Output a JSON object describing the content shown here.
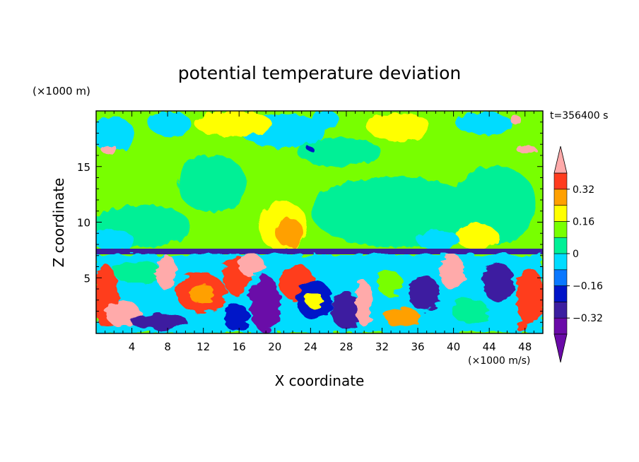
{
  "chart_data": {
    "type": "heatmap",
    "title": "potential temperature deviation",
    "xlabel": "X coordinate",
    "ylabel": "Z coordinate",
    "x_unit": "(×1000 m/s)",
    "y_unit": "(×1000 m)",
    "time_label": "t=356400 s",
    "xlim": [
      0,
      50
    ],
    "ylim": [
      0,
      20
    ],
    "x_ticks": [
      4,
      8,
      12,
      16,
      20,
      24,
      28,
      32,
      36,
      40,
      44,
      48
    ],
    "y_ticks": [
      5,
      10,
      15
    ],
    "x_minor_step": 1,
    "y_minor_step": 1,
    "colorbar": {
      "levels": [
        -0.4,
        -0.32,
        -0.24,
        -0.16,
        -0.08,
        0,
        0.08,
        0.16,
        0.24,
        0.32,
        0.4
      ],
      "labels": [
        "0.32",
        "0.16",
        "0",
        "−0.16",
        "−0.32"
      ],
      "label_values": [
        0.32,
        0.16,
        0,
        -0.16,
        -0.32
      ],
      "colors_low_to_high": [
        "#6a0aa8",
        "#3c1ea0",
        "#0014c8",
        "#0a78ff",
        "#00dcff",
        "#00f096",
        "#78ff00",
        "#ffff00",
        "#ffa000",
        "#ff3c1e",
        "#ffaaaa"
      ]
    }
  }
}
